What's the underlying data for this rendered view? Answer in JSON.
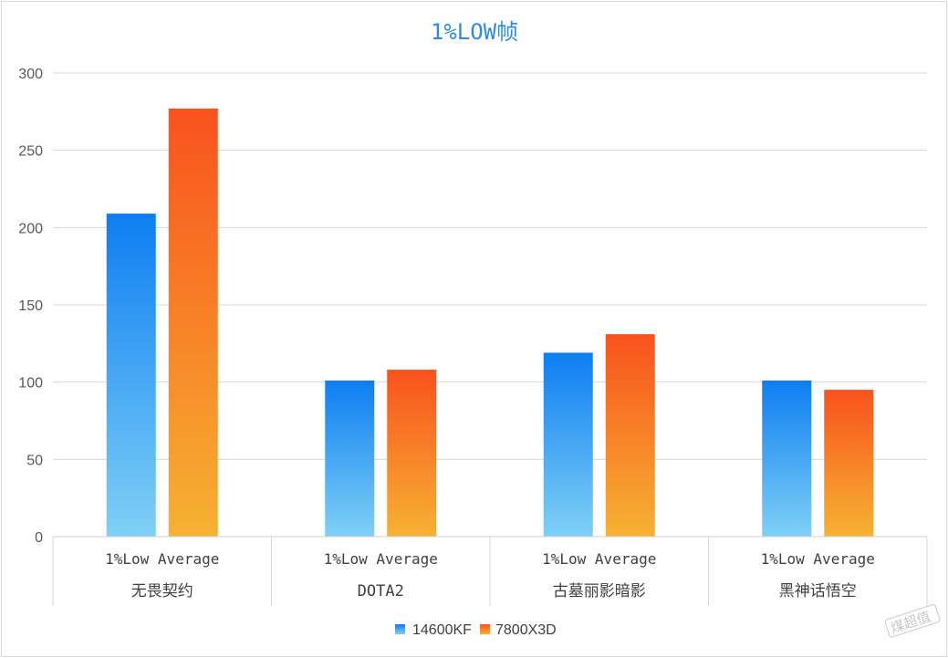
{
  "chart_data": {
    "type": "bar",
    "title": "1%LOW帧",
    "y_ticks": [
      "0",
      "50",
      "100",
      "150",
      "200",
      "250",
      "300"
    ],
    "ylim": [
      0,
      300
    ],
    "grid": true,
    "legend_position": "bottom",
    "categories": [
      {
        "group": "无畏契约",
        "sub": "1%Low Average"
      },
      {
        "group": "DOTA2",
        "sub": "1%Low Average"
      },
      {
        "group": "古墓丽影暗影",
        "sub": "1%Low Average"
      },
      {
        "group": "黑神话悟空",
        "sub": "1%Low Average"
      }
    ],
    "series": [
      {
        "name": "14600KF",
        "values": [
          209,
          101,
          119,
          101
        ],
        "color_top": "#0d7ef2",
        "color_bottom": "#7fd0f5"
      },
      {
        "name": "7800X3D",
        "values": [
          277,
          108,
          131,
          95
        ],
        "color_top": "#f9521d",
        "color_bottom": "#f6b232"
      }
    ]
  },
  "watermark": "煤超值"
}
